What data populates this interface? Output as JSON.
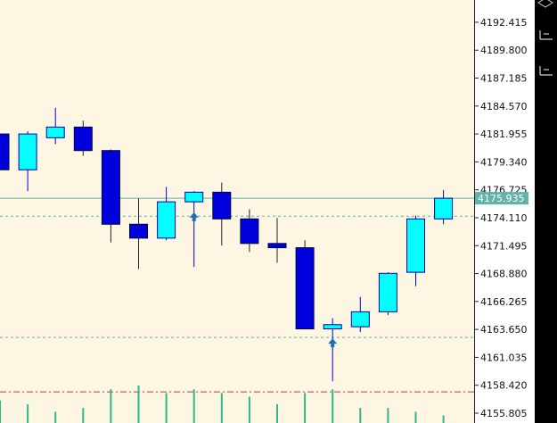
{
  "chart_data": {
    "type": "candlestick",
    "price_axis": {
      "min": 4155.805,
      "max": 4194.5,
      "ticks": [
        "4192.415",
        "4189.800",
        "4187.185",
        "4184.570",
        "4181.955",
        "4179.340",
        "4176.725",
        "4174.110",
        "4171.495",
        "4168.880",
        "4166.265",
        "4163.650",
        "4161.035",
        "4158.420",
        "4155.805"
      ]
    },
    "current_price": {
      "label": "4175.935",
      "value": 4175.935,
      "color": "#5fb3a8"
    },
    "reference_lines": [
      {
        "value": 4174.25,
        "style": "dashed",
        "color": "#5fb3a8"
      },
      {
        "value": 4162.9,
        "style": "dashed",
        "color": "#5fb3a8"
      },
      {
        "value": 4157.8,
        "style": "dash-dot",
        "color": "#c0392b"
      }
    ],
    "candles": [
      {
        "open": 4181.955,
        "high": 4181.955,
        "low": 4178.6,
        "close": 4178.6
      },
      {
        "open": 4178.6,
        "high": 4182.2,
        "low": 4176.6,
        "close": 4181.955
      },
      {
        "open": 4181.6,
        "high": 4184.4,
        "low": 4181.0,
        "close": 4182.6
      },
      {
        "open": 4182.6,
        "high": 4183.2,
        "low": 4179.9,
        "close": 4180.4
      },
      {
        "open": 4180.4,
        "high": 4180.5,
        "low": 4171.8,
        "close": 4173.5
      },
      {
        "open": 4173.5,
        "high": 4175.9,
        "low": 4169.3,
        "close": 4172.2
      },
      {
        "open": 4172.2,
        "high": 4177.0,
        "low": 4172.0,
        "close": 4175.6
      },
      {
        "open": 4175.6,
        "high": 4176.6,
        "low": 4169.5,
        "close": 4176.5
      },
      {
        "open": 4176.5,
        "high": 4177.4,
        "low": 4171.5,
        "close": 4174.0
      },
      {
        "open": 4174.0,
        "high": 4174.9,
        "low": 4170.9,
        "close": 4171.7
      },
      {
        "open": 4171.7,
        "high": 4174.1,
        "low": 4169.9,
        "close": 4171.3
      },
      {
        "open": 4171.3,
        "high": 4172.0,
        "low": 4163.7,
        "close": 4163.7
      },
      {
        "open": 4163.7,
        "high": 4164.7,
        "low": 4158.8,
        "close": 4164.1
      },
      {
        "open": 4163.9,
        "high": 4166.7,
        "low": 4163.4,
        "close": 4165.3
      },
      {
        "open": 4165.3,
        "high": 4169.0,
        "low": 4165.0,
        "close": 4168.9
      },
      {
        "open": 4169.0,
        "high": 4174.3,
        "low": 4167.7,
        "close": 4174.0
      },
      {
        "open": 4174.0,
        "high": 4176.7,
        "low": 4173.5,
        "close": 4175.935
      }
    ],
    "signal_arrows": [
      {
        "candle_index": 7,
        "value": 4174.2
      },
      {
        "candle_index": 12,
        "value": 4162.4
      }
    ],
    "up_color": "#00ffff",
    "down_color": "#0000dd",
    "volume_relative": [
      0.6,
      0.5,
      0.3,
      0.4,
      0.9,
      1.0,
      0.8,
      0.9,
      0.8,
      0.7,
      0.5,
      0.8,
      0.9,
      0.4,
      0.4,
      0.3,
      0.2
    ]
  }
}
